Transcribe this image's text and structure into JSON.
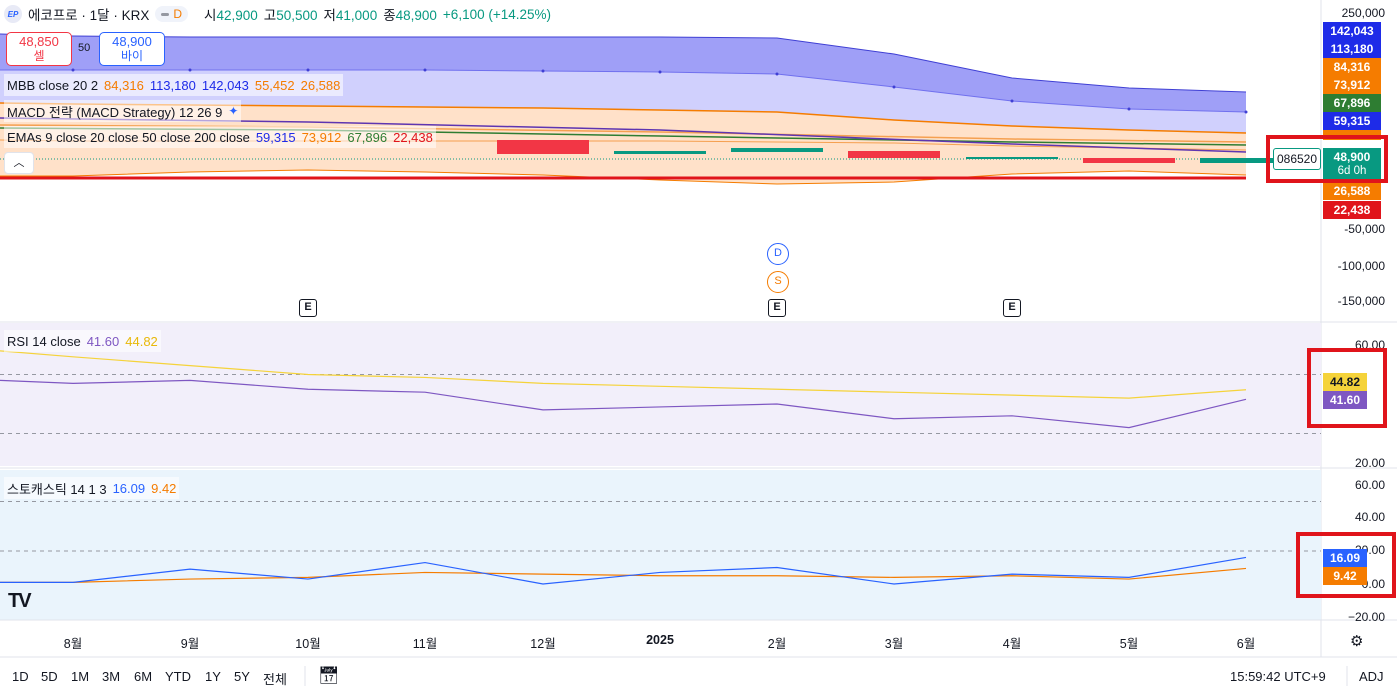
{
  "header": {
    "logo": "EP",
    "symbol": "에코프로 · 1달 · KRX",
    "pill_letter": "D",
    "open_label": "시",
    "open": "42,900",
    "high_label": "고",
    "high": "50,500",
    "low_label": "저",
    "low": "41,000",
    "close_label": "종",
    "close": "48,900",
    "change": "+6,100 (+14.25%)"
  },
  "trade": {
    "sell_price": "48,850",
    "sell_label": "셀",
    "spread": "50",
    "buy_price": "48,900",
    "buy_label": "바이"
  },
  "indicators": {
    "mbb": {
      "name": "MBB close 20 2",
      "v1": "84,316",
      "v2": "113,180",
      "v3": "142,043",
      "v4": "55,452",
      "v5": "26,588"
    },
    "macd": {
      "name": "MACD 전략 (MACD Strategy) 12 26 9"
    },
    "emas": {
      "name": "EMAs 9 close 20 close 50 close 200 close",
      "v1": "59,315",
      "v2": "73,912",
      "v3": "67,896",
      "v4": "22,438"
    },
    "rsi": {
      "name": "RSI 14 close",
      "v1": "41.60",
      "v2": "44.82"
    },
    "stoch": {
      "name": "스토캐스틱 14 1 3",
      "v1": "16.09",
      "v2": "9.42"
    }
  },
  "price_axis": [
    "250,000",
    "-50,000",
    "-100,000",
    "-150,000"
  ],
  "price_tags": [
    {
      "text": "142,043",
      "color": "#1e2be8"
    },
    {
      "text": "113,180",
      "color": "#1e2be8"
    },
    {
      "text": "84,316",
      "color": "#f57c00"
    },
    {
      "text": "73,912",
      "color": "#f57c00"
    },
    {
      "text": "67,896",
      "color": "#2e7d32"
    },
    {
      "text": "59,315",
      "color": "#1e2be8"
    },
    {
      "text": "26,588",
      "color": "#f57c00"
    },
    {
      "text": "22,438",
      "color": "#e0141b"
    }
  ],
  "current": {
    "ticker": "086520",
    "price": "48,900",
    "countdown": "6d 0h"
  },
  "rsi_axis": [
    "60.00",
    "20.00"
  ],
  "rsi_tags": [
    {
      "text": "44.82",
      "color": "#f5d33a"
    },
    {
      "text": "41.60",
      "color": "#7e57c2"
    }
  ],
  "stoch_axis": [
    "60.00",
    "40.00",
    "20.00",
    "0.00",
    "−20.00"
  ],
  "stoch_tags": [
    {
      "text": "16.09",
      "color": "#2962ff"
    },
    {
      "text": "9.42",
      "color": "#f57c00"
    }
  ],
  "time_axis": [
    "8월",
    "9월",
    "10월",
    "11월",
    "12월",
    "2025",
    "2월",
    "3월",
    "4월",
    "5월",
    "6월"
  ],
  "events": {
    "e": "E",
    "d": "D",
    "s": "S"
  },
  "bottom": {
    "ranges": [
      "1D",
      "5D",
      "1M",
      "3M",
      "6M",
      "YTD",
      "1Y",
      "5Y",
      "전체"
    ],
    "clock": "15:59:42 UTC+9",
    "adj": "ADJ"
  },
  "colors": {
    "up": "#089981",
    "down": "#f23645",
    "accent": "#2962ff",
    "highlight": "#e0141b"
  },
  "chart_data": {
    "type": "line",
    "x": [
      "2024-08",
      "2024-09",
      "2024-10",
      "2024-11",
      "2024-12",
      "2025-01",
      "2025-02",
      "2025-03",
      "2025-04",
      "2025-05",
      "2025-06"
    ],
    "candles_visible": [
      {
        "x": "2024-12",
        "dir": "down"
      },
      {
        "x": "2025-01",
        "dir": "up"
      },
      {
        "x": "2025-02",
        "dir": "up"
      },
      {
        "x": "2025-03",
        "dir": "down"
      },
      {
        "x": "2025-04",
        "dir": "up"
      },
      {
        "x": "2025-05",
        "dir": "down"
      },
      {
        "x": "2025-06",
        "dir": "up",
        "close": 48900
      }
    ],
    "rsi": {
      "rsi": [
        48,
        47,
        48,
        45,
        44,
        38,
        39,
        40,
        35,
        36,
        32,
        41.6
      ],
      "ma": [
        58,
        56,
        53,
        50,
        49,
        47,
        46,
        45,
        44,
        43,
        42,
        44.82
      ]
    },
    "stoch": {
      "k": [
        1,
        1,
        9,
        3,
        13,
        0,
        7,
        10,
        0,
        6,
        4,
        16.09
      ],
      "d": [
        1,
        1,
        3,
        4,
        7,
        6,
        5,
        5,
        4,
        5,
        3,
        9.42
      ]
    }
  }
}
